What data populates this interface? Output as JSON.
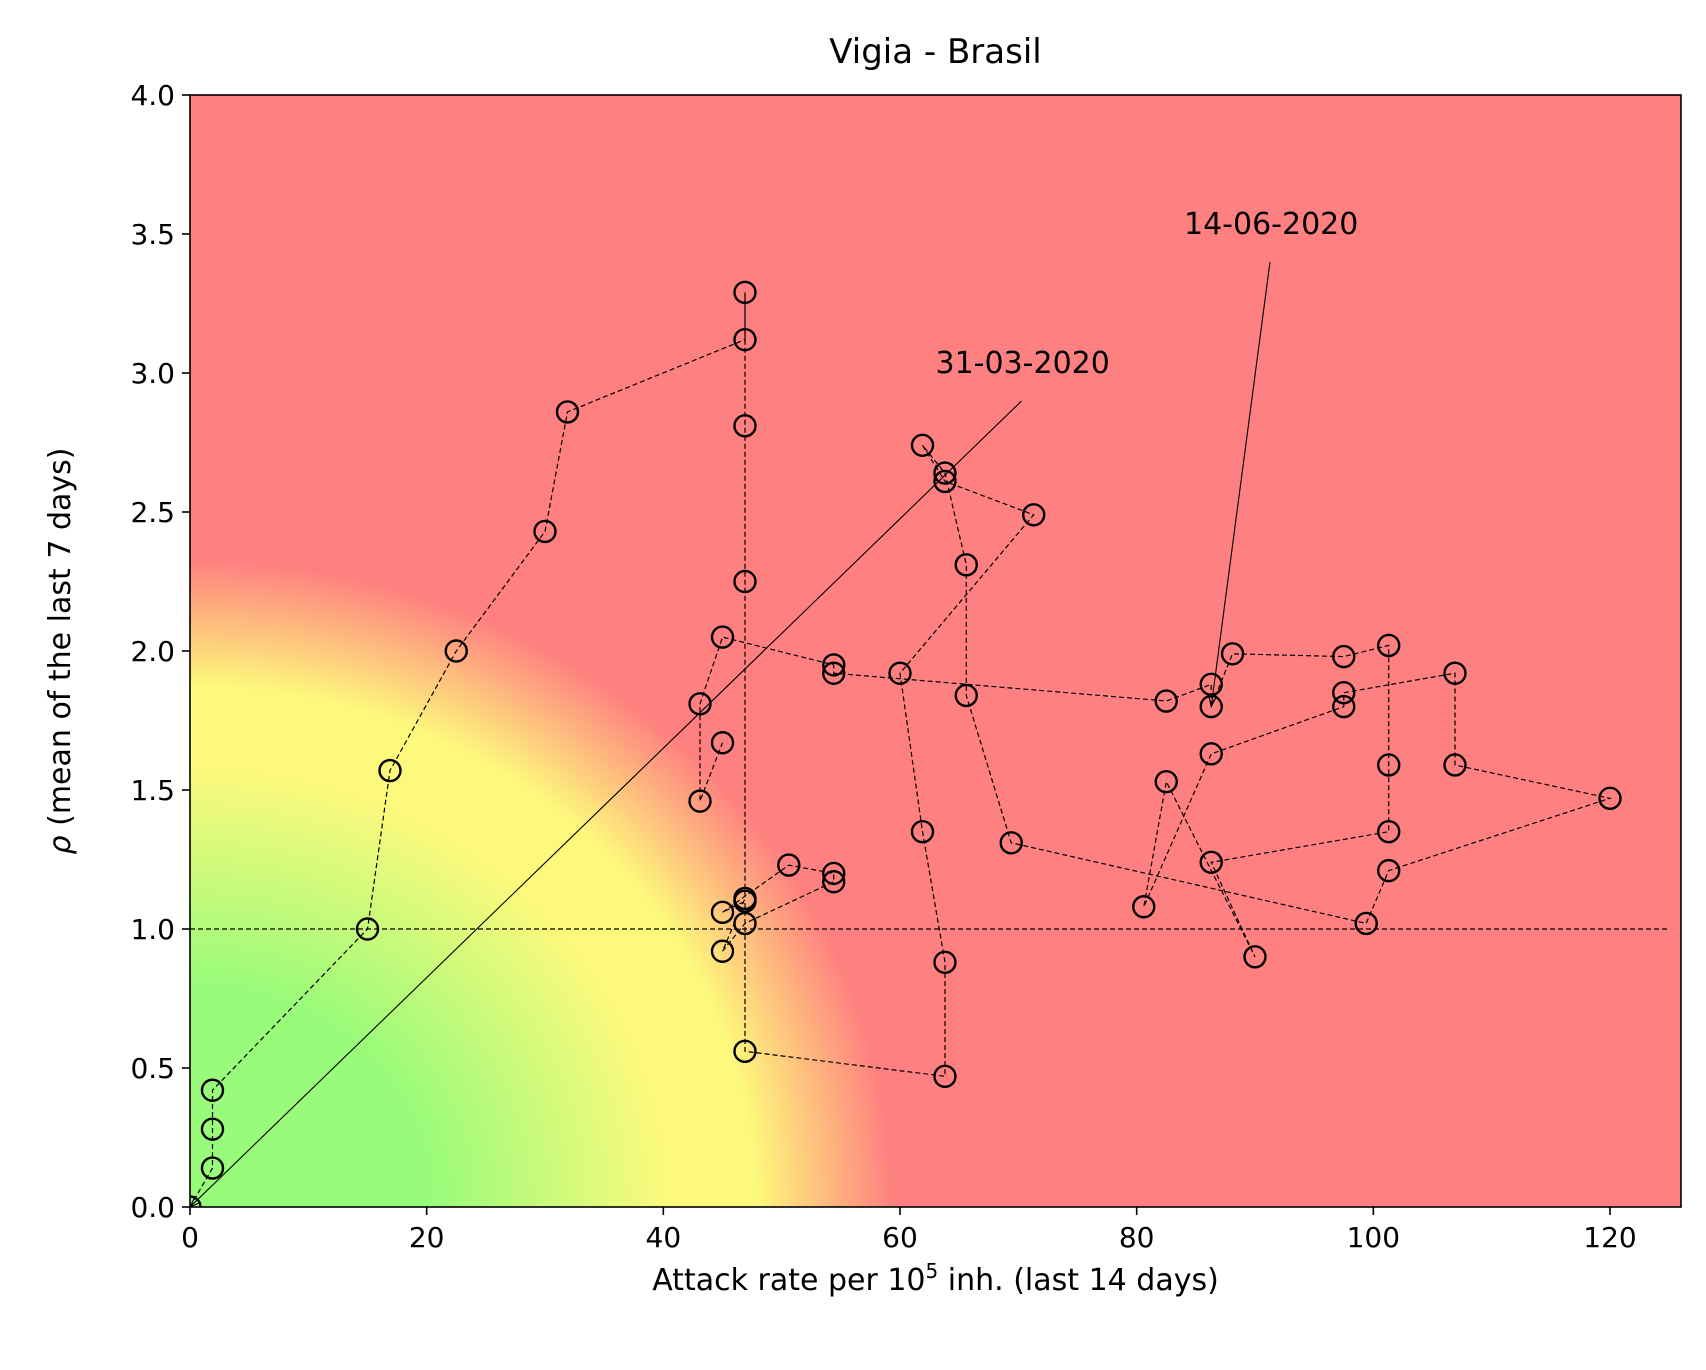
{
  "chart_data": {
    "type": "scatter",
    "title": "Vigia - Brasil",
    "xlabel_main": "Attack rate per 10",
    "xlabel_sup": "5",
    "xlabel_rest": " inh. (last 14 days)",
    "ylabel_symbol": "ρ",
    "ylabel_rest": " (mean of the last 7 days)",
    "xlim": [
      0,
      126
    ],
    "ylim": [
      0,
      4.0
    ],
    "xticks": [
      0,
      20,
      40,
      60,
      80,
      100,
      120
    ],
    "xtick_labels": [
      "0",
      "20",
      "40",
      "60",
      "80",
      "100",
      "120"
    ],
    "yticks": [
      0,
      0.5,
      1.0,
      1.5,
      2.0,
      2.5,
      3.0,
      3.5,
      4.0
    ],
    "ytick_labels": [
      "0.0",
      "0.5",
      "1.0",
      "1.5",
      "2.0",
      "2.5",
      "3.0",
      "3.5",
      "4.0"
    ],
    "reference_line_y": 1.0,
    "background": "risk gradient (green near origin, yellow mid, red outside)",
    "colors": {
      "green": "#98fb7a",
      "yellow": "#fdf97c",
      "red": "#ff8080",
      "marker_edge": "#000000"
    },
    "series": [
      {
        "points": [
          [
            0.0,
            0.0
          ],
          [
            1.9,
            0.14
          ],
          [
            1.9,
            0.28
          ],
          [
            1.9,
            0.42
          ],
          [
            15.0,
            1.0
          ],
          [
            16.9,
            1.57
          ],
          [
            22.5,
            2.0
          ],
          [
            30.0,
            2.43
          ],
          [
            31.9,
            2.86
          ],
          [
            46.9,
            3.12
          ],
          [
            46.9,
            3.29
          ],
          [
            46.9,
            2.81
          ],
          [
            46.9,
            2.25
          ],
          [
            46.9,
            1.11
          ],
          [
            45.0,
            0.92
          ],
          [
            46.9,
            1.02
          ],
          [
            54.4,
            1.17
          ],
          [
            54.4,
            1.2
          ],
          [
            50.6,
            1.23
          ],
          [
            45.0,
            1.06
          ],
          [
            46.9,
            1.1
          ],
          [
            46.9,
            0.56
          ],
          [
            63.8,
            0.47
          ],
          [
            63.8,
            0.88
          ],
          [
            61.9,
            1.35
          ],
          [
            60.0,
            1.92
          ],
          [
            71.3,
            2.49
          ],
          [
            63.8,
            2.61
          ],
          [
            61.9,
            2.74
          ],
          [
            63.8,
            2.64
          ],
          [
            65.6,
            2.31
          ],
          [
            65.6,
            1.84
          ],
          [
            69.4,
            1.31
          ],
          [
            99.4,
            1.02
          ],
          [
            101.3,
            1.21
          ],
          [
            120.0,
            1.47
          ],
          [
            106.9,
            1.59
          ],
          [
            106.9,
            1.92
          ],
          [
            97.5,
            1.85
          ],
          [
            97.5,
            1.8
          ],
          [
            86.3,
            1.63
          ],
          [
            80.6,
            1.08
          ],
          [
            82.5,
            1.53
          ],
          [
            90.0,
            0.9
          ],
          [
            86.3,
            1.24
          ],
          [
            101.3,
            1.35
          ],
          [
            101.3,
            1.59
          ],
          [
            101.3,
            2.02
          ],
          [
            97.5,
            1.98
          ],
          [
            88.1,
            1.99
          ],
          [
            86.3,
            1.8
          ],
          [
            86.3,
            1.88
          ],
          [
            82.5,
            1.82
          ],
          [
            54.4,
            1.92
          ],
          [
            54.4,
            1.95
          ],
          [
            45.0,
            2.05
          ],
          [
            43.1,
            1.81
          ],
          [
            43.1,
            1.46
          ],
          [
            45.0,
            1.67
          ]
        ]
      }
    ],
    "annotations": [
      {
        "text": "31-03-2020",
        "point": [
          0.0,
          0.0
        ],
        "text_pos": [
          63,
          3.0
        ]
      },
      {
        "text": "14-06-2020",
        "point": [
          86.3,
          1.8
        ],
        "text_pos": [
          84,
          3.5
        ]
      }
    ]
  }
}
